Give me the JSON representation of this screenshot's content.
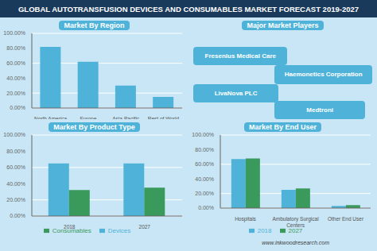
{
  "title": "GLOBAL AUTOTRANSFUSION DEVICES AND CONSUMABLES MARKET FORECAST 2019-2027",
  "annotations": [
    "www.inkwoodresearch.com"
  ],
  "chart_data": [
    {
      "type": "bar",
      "title": "Market By Region",
      "categories": [
        "North America",
        "Europe",
        "Asia-Pacific",
        "Rest of World"
      ],
      "values": [
        82,
        62,
        30,
        15
      ],
      "color": "#4fb3d9",
      "ylim": [
        0,
        100
      ],
      "yticks": [
        {
          "value": 0,
          "label": "0.00%"
        },
        {
          "value": 20,
          "label": "20.00%"
        },
        {
          "value": 40,
          "label": "40.00%"
        },
        {
          "value": 60,
          "label": "60.00%"
        },
        {
          "value": 80,
          "label": "80.00%"
        },
        {
          "value": 100,
          "label": "100.00%"
        }
      ],
      "grid": true
    },
    {
      "type": "bar",
      "title": "Market By Product Type",
      "categories": [
        "2018",
        "2027"
      ],
      "series": [
        {
          "name": "Devices",
          "color": "#4fb3d9",
          "values": [
            65,
            65
          ]
        },
        {
          "name": "Consumables",
          "color": "#3a9a5c",
          "values": [
            32,
            35
          ]
        }
      ],
      "ylim": [
        0,
        100
      ],
      "yticks": [
        {
          "value": 0,
          "label": "0.00%"
        },
        {
          "value": 20,
          "label": "20.00%"
        },
        {
          "value": 40,
          "label": "40.00%"
        },
        {
          "value": 60,
          "label": "60.00%"
        },
        {
          "value": 80,
          "label": "80.00%"
        },
        {
          "value": 100,
          "label": "100.00%"
        }
      ],
      "grid": true,
      "legend": "bottom"
    },
    {
      "type": "text",
      "title": "Major Market Players",
      "annotations": [
        "Fresenius Medical Care",
        "Haemonetics Corporation",
        "LivaNova PLC",
        "Medtroni"
      ],
      "color": "#4fb3d9"
    },
    {
      "type": "bar",
      "title": "Market By End User",
      "categories": [
        "Hospitals",
        "Ambulatory Surgical\nCenters",
        "Other End User"
      ],
      "series": [
        {
          "name": "2018",
          "color": "#4fb3d9",
          "values": [
            67,
            25,
            3
          ]
        },
        {
          "name": "2027",
          "color": "#3a9a5c",
          "values": [
            68,
            27,
            4
          ]
        }
      ],
      "ylim": [
        0,
        100
      ],
      "yticks": [
        {
          "value": 0,
          "label": "0.00%"
        },
        {
          "value": 20,
          "label": "20.00%"
        },
        {
          "value": 40,
          "label": "40.00%"
        },
        {
          "value": 60,
          "label": "60.00%"
        },
        {
          "value": 80,
          "label": "80.00%"
        },
        {
          "value": 100,
          "label": "100.00%"
        }
      ],
      "grid": true,
      "legend": "bottom"
    }
  ]
}
